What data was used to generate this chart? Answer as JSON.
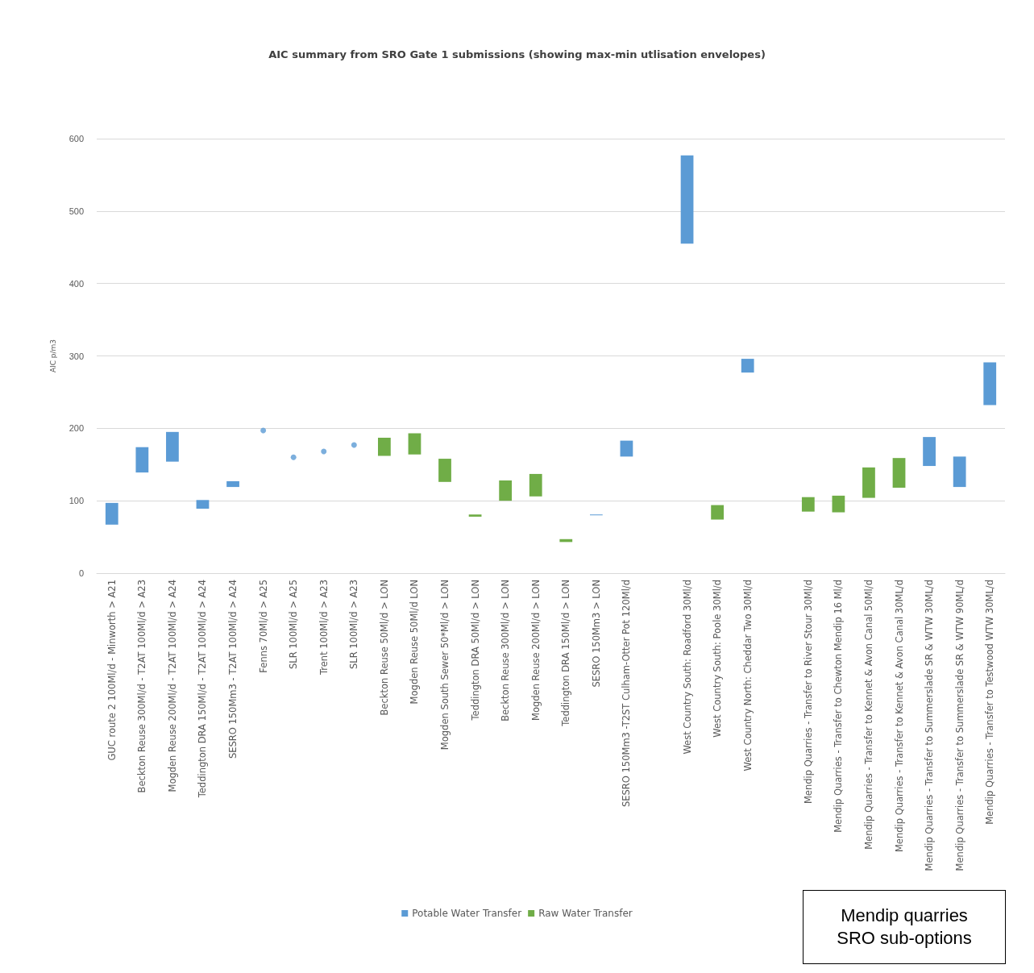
{
  "chart_data": {
    "type": "bar",
    "title": "AIC summary from SRO Gate 1 submissions (showing max-min utlisation envelopes)",
    "ylabel": "AIC p/m3",
    "categories": [
      "GUC route 2 100Ml/d - Minworth > A21",
      "Beckton Reuse 300Ml/d - T2AT 100Ml/d > A23",
      "Mogden Reuse 200Ml/d - T2AT 100Ml/d > A24",
      "Teddington DRA 150Ml/d - T2AT 100Ml/d > A24",
      "SESRO 150Mm3 - T2AT 100Ml/d > A24",
      "Fenns 70Ml/d > A25",
      "SLR 100Ml/d > A25",
      "Trent 100Ml/d > A23",
      "SLR 100Ml/d > A23",
      "Beckton Reuse 50Ml/d > LON",
      "Mogden Reuse 50Ml/d LON",
      "Mogden South Sewer 50*Ml/d > LON",
      "Teddington DRA 50Ml/d > LON",
      "Beckton Reuse 300Ml/d > LON",
      "Mogden Reuse 200Ml/d > LON",
      "Teddington DRA 150Ml/d > LON",
      "SESRO 150Mm3 > LON",
      "SESRO 150Mm3 -T2ST Culham-Otter Pot 120Ml/d",
      null,
      "West Country South: Roadford 30Ml/d",
      "West Country South: Poole 30Ml/d",
      "West Country North: Cheddar Two 30Ml/d",
      null,
      "Mendip Quarries - Transfer to River Stour 30Ml/d",
      "Mendip Quarries - Transfer to Chewton Mendip 16 Ml/d",
      "Mendip Quarries - Transfer to Kennet & Avon Canal 50Ml/d",
      "Mendip Quarries - Transfer to Kennet & Avon Canal 30ML/d",
      "Mendip Quarries - Transfer to Summerslade SR & WTW 30ML/d",
      "Mendip Quarries - Transfer to Summerslade SR & WTW 90ML/d",
      "Mendip Quarries - Transfer to Testwood WTW 30ML/d"
    ],
    "series": [
      {
        "name": "Potable Water Transfer",
        "color": "#5b9bd5",
        "base": [
          67,
          139,
          154,
          89,
          119,
          null,
          null,
          null,
          null,
          null,
          null,
          null,
          null,
          null,
          null,
          null,
          80,
          161,
          null,
          455,
          null,
          277,
          null,
          null,
          null,
          null,
          null,
          148,
          119,
          232
        ],
        "values": [
          30,
          35,
          41,
          12,
          8,
          null,
          null,
          null,
          null,
          null,
          null,
          null,
          null,
          null,
          null,
          null,
          1,
          22,
          null,
          122,
          null,
          19,
          null,
          null,
          null,
          null,
          null,
          40,
          42,
          59
        ]
      },
      {
        "name": "Raw Water Transfer",
        "color": "#70ad47",
        "base": [
          null,
          null,
          null,
          null,
          null,
          null,
          null,
          null,
          null,
          162,
          164,
          126,
          78,
          100,
          106,
          43,
          null,
          null,
          null,
          null,
          74,
          null,
          null,
          85,
          84,
          104,
          118,
          null,
          null,
          null
        ],
        "values": [
          null,
          null,
          null,
          null,
          null,
          null,
          null,
          null,
          null,
          25,
          29,
          32,
          3,
          28,
          31,
          4,
          null,
          null,
          null,
          null,
          20,
          null,
          null,
          20,
          23,
          42,
          41,
          null,
          null,
          null
        ]
      },
      {
        "type": "scatter",
        "color": "#5b9bd5",
        "marker": "circle",
        "values": [
          null,
          null,
          null,
          null,
          null,
          197,
          160,
          168,
          177,
          null,
          null,
          null,
          null,
          null,
          null,
          null,
          null,
          null,
          null,
          null,
          null,
          null,
          null,
          null,
          null,
          null,
          null,
          null,
          null,
          null
        ]
      }
    ],
    "ylim": [
      0,
      600
    ],
    "yticks": [
      0,
      100,
      200,
      300,
      400,
      500,
      600
    ],
    "grid": "y",
    "legend": "bottom",
    "annotations": [
      "Mendip quarries SRO sub-options"
    ]
  }
}
